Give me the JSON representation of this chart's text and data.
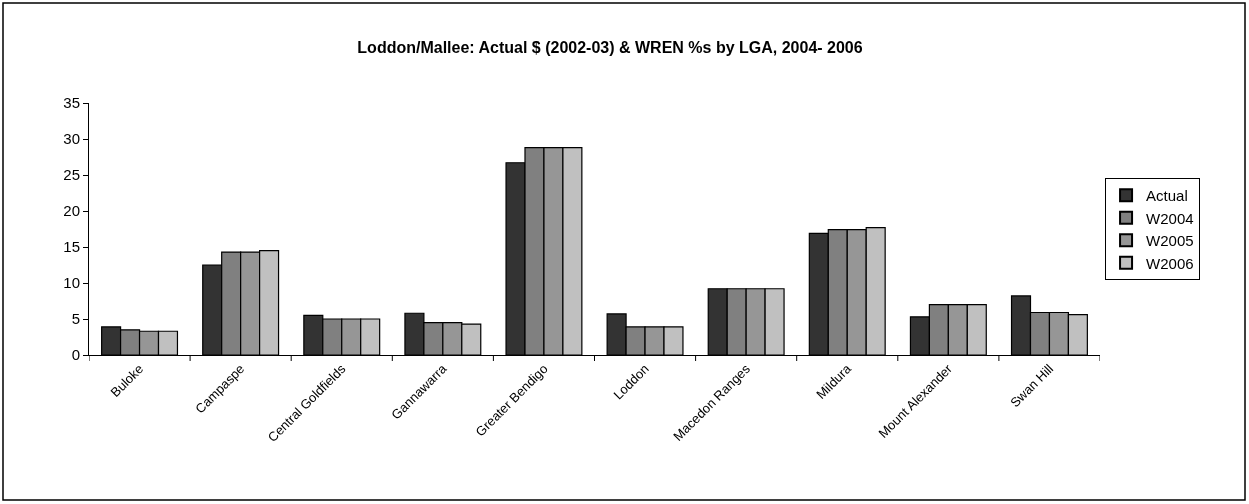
{
  "chart_data": {
    "type": "bar",
    "title": "Loddon/Mallee: Actual $ (2002-03) & WREN %s by LGA, 2004- 2006",
    "categories": [
      "Buloke",
      "Campaspe",
      "Central Goldfields",
      "Gannawarra",
      "Greater Bendigo",
      "Loddon",
      "Macedon Ranges",
      "Mildura",
      "Mount Alexander",
      "Swan Hill"
    ],
    "series": [
      {
        "name": "Actual",
        "color": "#333333",
        "values": [
          3.9,
          12.5,
          5.5,
          5.8,
          26.7,
          5.7,
          9.2,
          16.9,
          5.3,
          8.2
        ]
      },
      {
        "name": "W2004",
        "color": "#808080",
        "values": [
          3.5,
          14.3,
          5.0,
          4.5,
          28.8,
          3.9,
          9.2,
          17.4,
          7.0,
          5.9
        ]
      },
      {
        "name": "W2005",
        "color": "#969696",
        "values": [
          3.3,
          14.3,
          5.0,
          4.5,
          28.8,
          3.9,
          9.2,
          17.4,
          7.0,
          5.9
        ]
      },
      {
        "name": "W2006",
        "color": "#c0c0c0",
        "values": [
          3.3,
          14.5,
          5.0,
          4.3,
          28.8,
          3.9,
          9.2,
          17.7,
          7.0,
          5.6
        ]
      }
    ],
    "ylim": [
      0,
      35
    ],
    "yticks": [
      0,
      5,
      10,
      15,
      20,
      25,
      30,
      35
    ],
    "legend": "right"
  }
}
